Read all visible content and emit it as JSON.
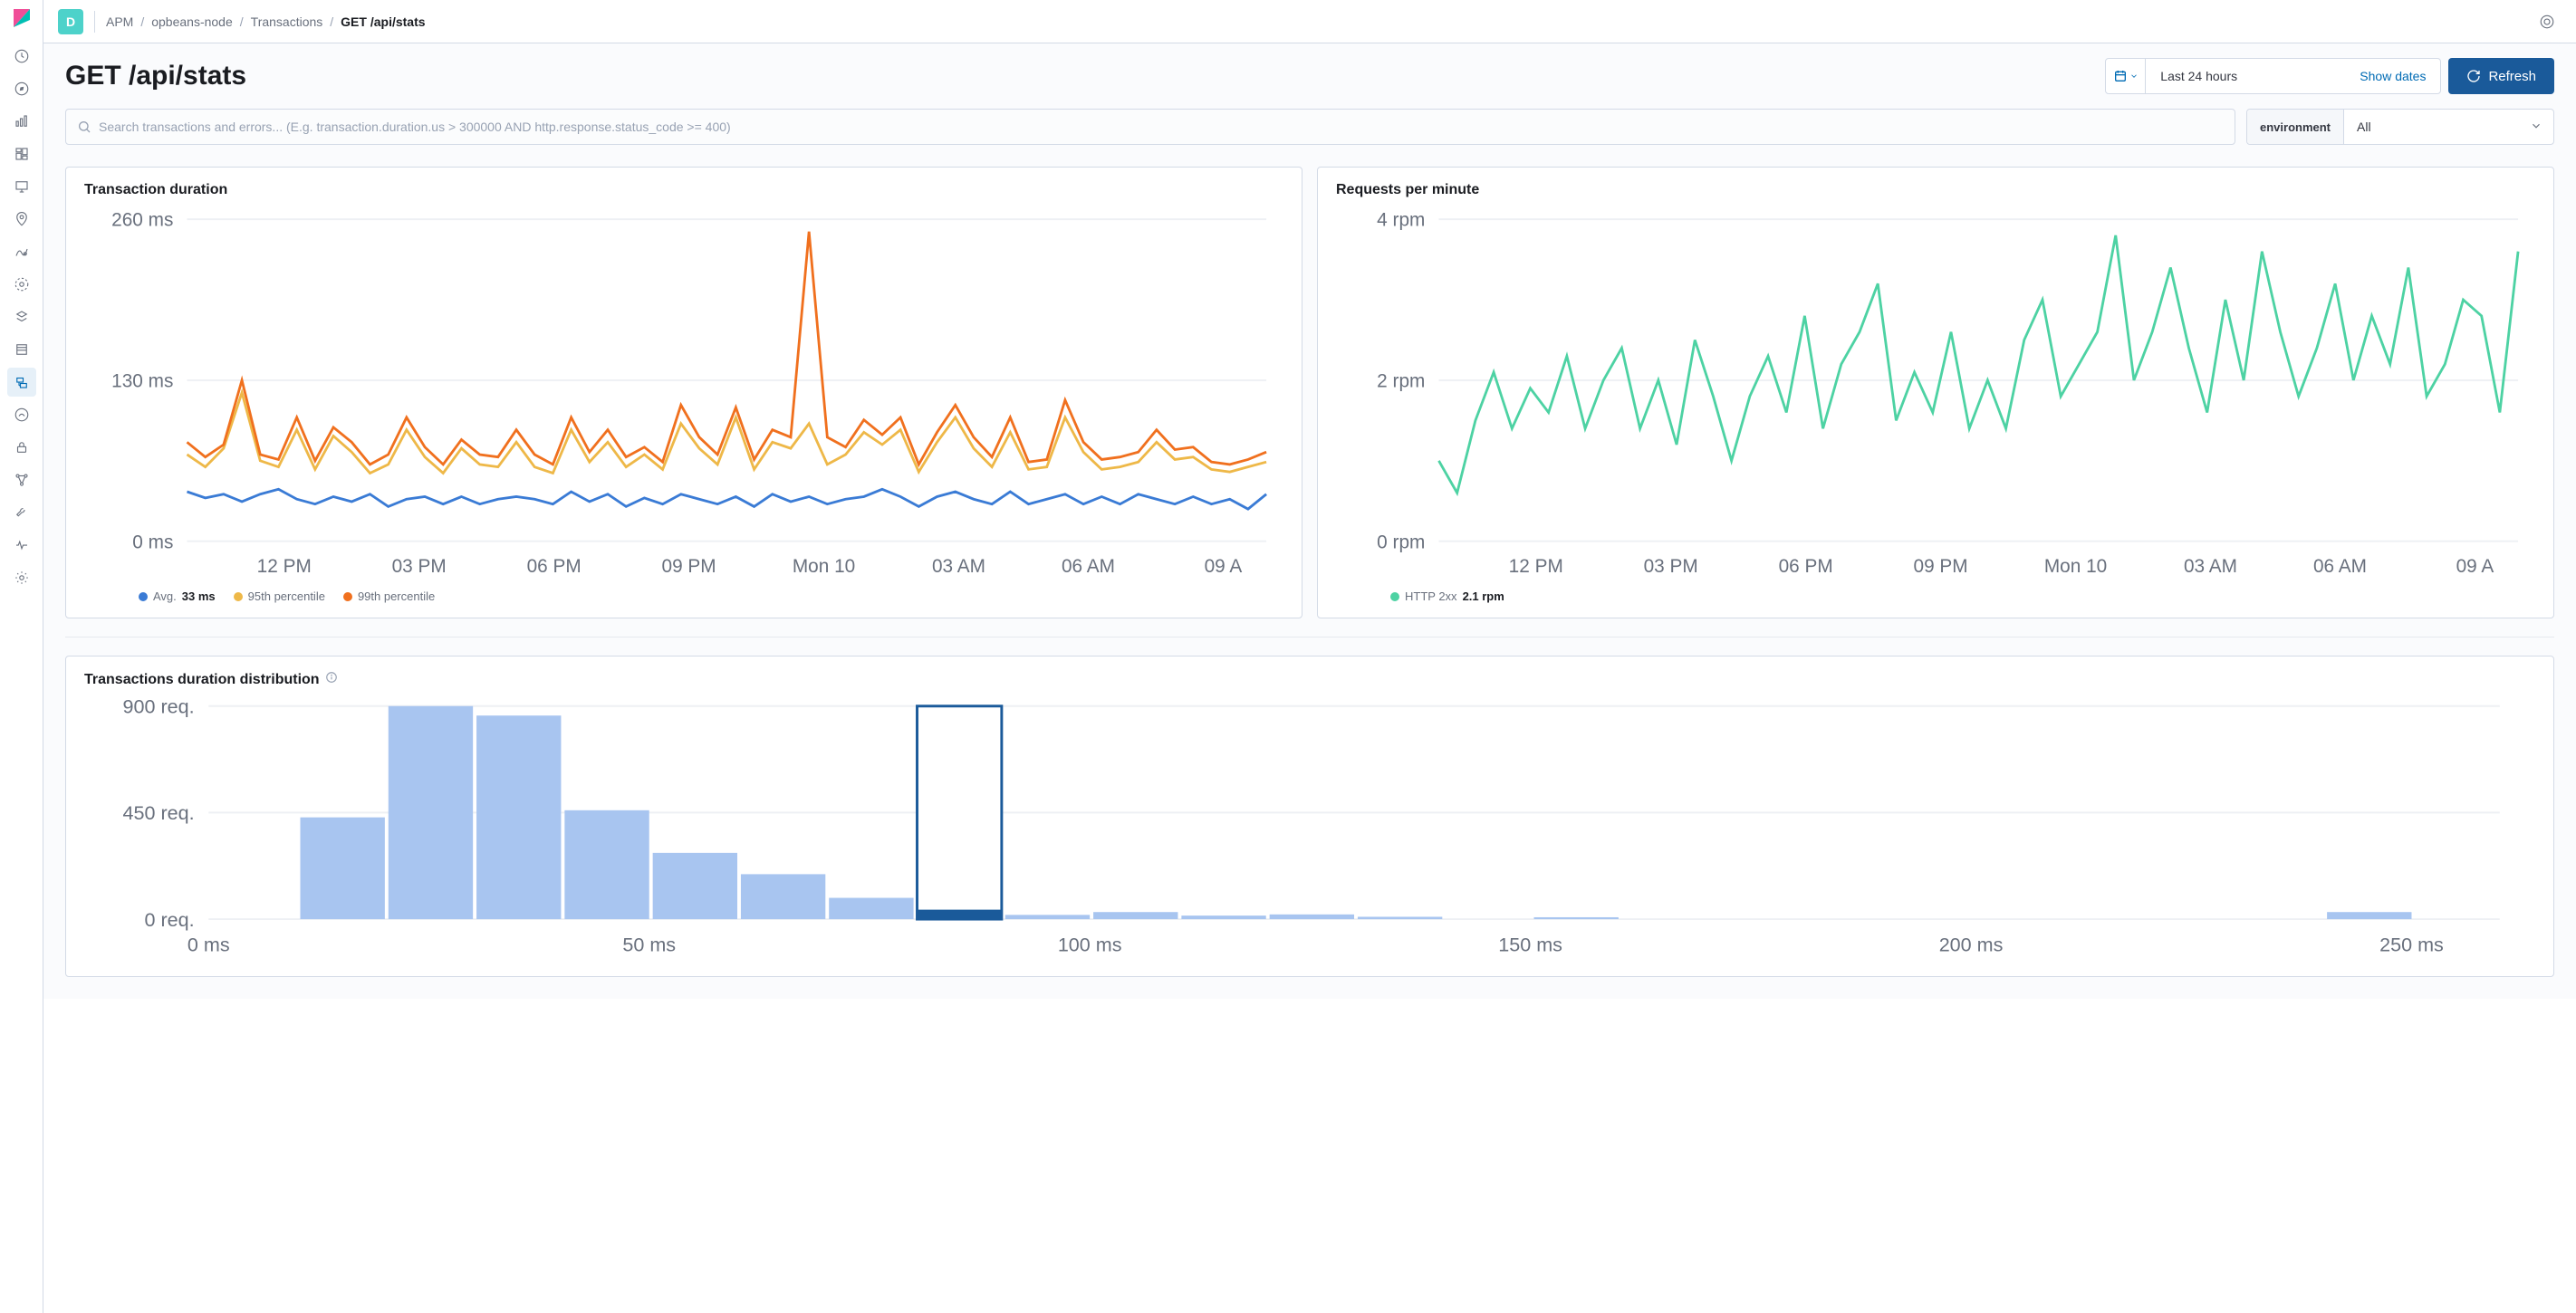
{
  "space_letter": "D",
  "breadcrumb": [
    "APM",
    "opbeans-node",
    "Transactions",
    "GET /api/stats"
  ],
  "page_title": "GET /api/stats",
  "datepicker": {
    "label": "Last 24 hours",
    "show_dates": "Show dates"
  },
  "refresh_label": "Refresh",
  "search_placeholder": "Search transactions and errors... (E.g. transaction.duration.us > 300000 AND http.response.status_code >= 400)",
  "environment": {
    "label": "environment",
    "value": "All"
  },
  "duration_chart": {
    "title": "Transaction duration",
    "type": "line",
    "y_ticks": [
      0,
      130,
      260
    ],
    "y_tick_labels": [
      "0 ms",
      "130 ms",
      "260 ms"
    ],
    "x_tick_labels": [
      "12 PM",
      "03 PM",
      "06 PM",
      "09 PM",
      "Mon 10",
      "03 AM",
      "06 AM",
      "09 A"
    ],
    "x_positions": [
      0.09,
      0.215,
      0.34,
      0.465,
      0.59,
      0.715,
      0.835,
      0.96
    ],
    "ylim": [
      0,
      260
    ],
    "grid_color": "#eef0f4",
    "background_color": "#ffffff",
    "series": {
      "avg": {
        "label": "Avg.",
        "value": "33 ms",
        "color": "#3a7bd5",
        "data": [
          40,
          35,
          38,
          32,
          38,
          42,
          34,
          30,
          36,
          32,
          38,
          28,
          34,
          36,
          30,
          36,
          30,
          34,
          36,
          34,
          30,
          40,
          32,
          38,
          28,
          35,
          30,
          38,
          34,
          30,
          36,
          28,
          38,
          32,
          36,
          30,
          34,
          36,
          42,
          36,
          28,
          36,
          40,
          34,
          30,
          40,
          30,
          34,
          38,
          30,
          36,
          30,
          38,
          34,
          30,
          36,
          30,
          34,
          26,
          38
        ]
      },
      "p95": {
        "label": "95th percentile",
        "value": "",
        "color": "#eeb848",
        "data": [
          70,
          60,
          75,
          120,
          65,
          60,
          90,
          58,
          85,
          72,
          55,
          62,
          90,
          68,
          55,
          75,
          62,
          60,
          80,
          60,
          55,
          90,
          64,
          80,
          60,
          70,
          58,
          95,
          75,
          62,
          100,
          58,
          80,
          75,
          95,
          62,
          70,
          88,
          78,
          90,
          56,
          80,
          100,
          75,
          60,
          88,
          58,
          60,
          100,
          72,
          58,
          60,
          64,
          80,
          66,
          68,
          58,
          56,
          60,
          64
        ]
      },
      "p99": {
        "label": "99th percentile",
        "value": "",
        "color": "#f0701e",
        "data": [
          80,
          68,
          78,
          130,
          70,
          66,
          100,
          65,
          92,
          80,
          62,
          70,
          100,
          76,
          62,
          82,
          70,
          68,
          90,
          70,
          62,
          100,
          72,
          90,
          68,
          76,
          64,
          110,
          84,
          70,
          108,
          66,
          90,
          84,
          250,
          84,
          76,
          98,
          86,
          100,
          62,
          88,
          110,
          84,
          68,
          100,
          64,
          66,
          114,
          80,
          66,
          68,
          72,
          90,
          74,
          76,
          64,
          62,
          66,
          72
        ]
      }
    }
  },
  "rpm_chart": {
    "title": "Requests per minute",
    "type": "line",
    "y_ticks": [
      0,
      2,
      4
    ],
    "y_tick_labels": [
      "0 rpm",
      "2 rpm",
      "4 rpm"
    ],
    "x_tick_labels": [
      "12 PM",
      "03 PM",
      "06 PM",
      "09 PM",
      "Mon 10",
      "03 AM",
      "06 AM",
      "09 A"
    ],
    "x_positions": [
      0.09,
      0.215,
      0.34,
      0.465,
      0.59,
      0.715,
      0.835,
      0.96
    ],
    "ylim": [
      0,
      4
    ],
    "grid_color": "#eef0f4",
    "background_color": "#ffffff",
    "series": {
      "http2xx": {
        "label": "HTTP 2xx",
        "value": "2.1 rpm",
        "color": "#4dd2a3",
        "data": [
          1.0,
          0.6,
          1.5,
          2.1,
          1.4,
          1.9,
          1.6,
          2.3,
          1.4,
          2.0,
          2.4,
          1.4,
          2.0,
          1.2,
          2.5,
          1.8,
          1.0,
          1.8,
          2.3,
          1.6,
          2.8,
          1.4,
          2.2,
          2.6,
          3.2,
          1.5,
          2.1,
          1.6,
          2.6,
          1.4,
          2.0,
          1.4,
          2.5,
          3.0,
          1.8,
          2.2,
          2.6,
          3.8,
          2.0,
          2.6,
          3.4,
          2.4,
          1.6,
          3.0,
          2.0,
          3.6,
          2.6,
          1.8,
          2.4,
          3.2,
          2.0,
          2.8,
          2.2,
          3.4,
          1.8,
          2.2,
          3.0,
          2.8,
          1.6,
          3.6
        ]
      }
    }
  },
  "histogram": {
    "title": "Transactions duration distribution",
    "type": "histogram",
    "x_ticks": [
      0,
      50,
      100,
      150,
      200,
      250
    ],
    "x_tick_labels": [
      "0 ms",
      "50 ms",
      "100 ms",
      "150 ms",
      "200 ms",
      "250 ms"
    ],
    "y_ticks": [
      0,
      450,
      900
    ],
    "y_tick_labels": [
      "0 req.",
      "450 req.",
      "900 req."
    ],
    "xlim": [
      0,
      260
    ],
    "ylim": [
      0,
      900
    ],
    "bar_width_ms": 10,
    "bar_color": "#a8c5f0",
    "selected_color": "#1a5a9a",
    "selected_border": "#1a5a9a",
    "grid_color": "#eef0f4",
    "bars": [
      {
        "x": 20,
        "v": 430
      },
      {
        "x": 30,
        "v": 900
      },
      {
        "x": 40,
        "v": 860
      },
      {
        "x": 50,
        "v": 460
      },
      {
        "x": 60,
        "v": 280
      },
      {
        "x": 70,
        "v": 190
      },
      {
        "x": 80,
        "v": 90
      },
      {
        "x": 90,
        "v": 40,
        "selected": true,
        "full_height": true
      },
      {
        "x": 100,
        "v": 18
      },
      {
        "x": 110,
        "v": 30
      },
      {
        "x": 120,
        "v": 15
      },
      {
        "x": 130,
        "v": 20
      },
      {
        "x": 140,
        "v": 10
      },
      {
        "x": 160,
        "v": 8
      },
      {
        "x": 250,
        "v": 30
      }
    ]
  }
}
